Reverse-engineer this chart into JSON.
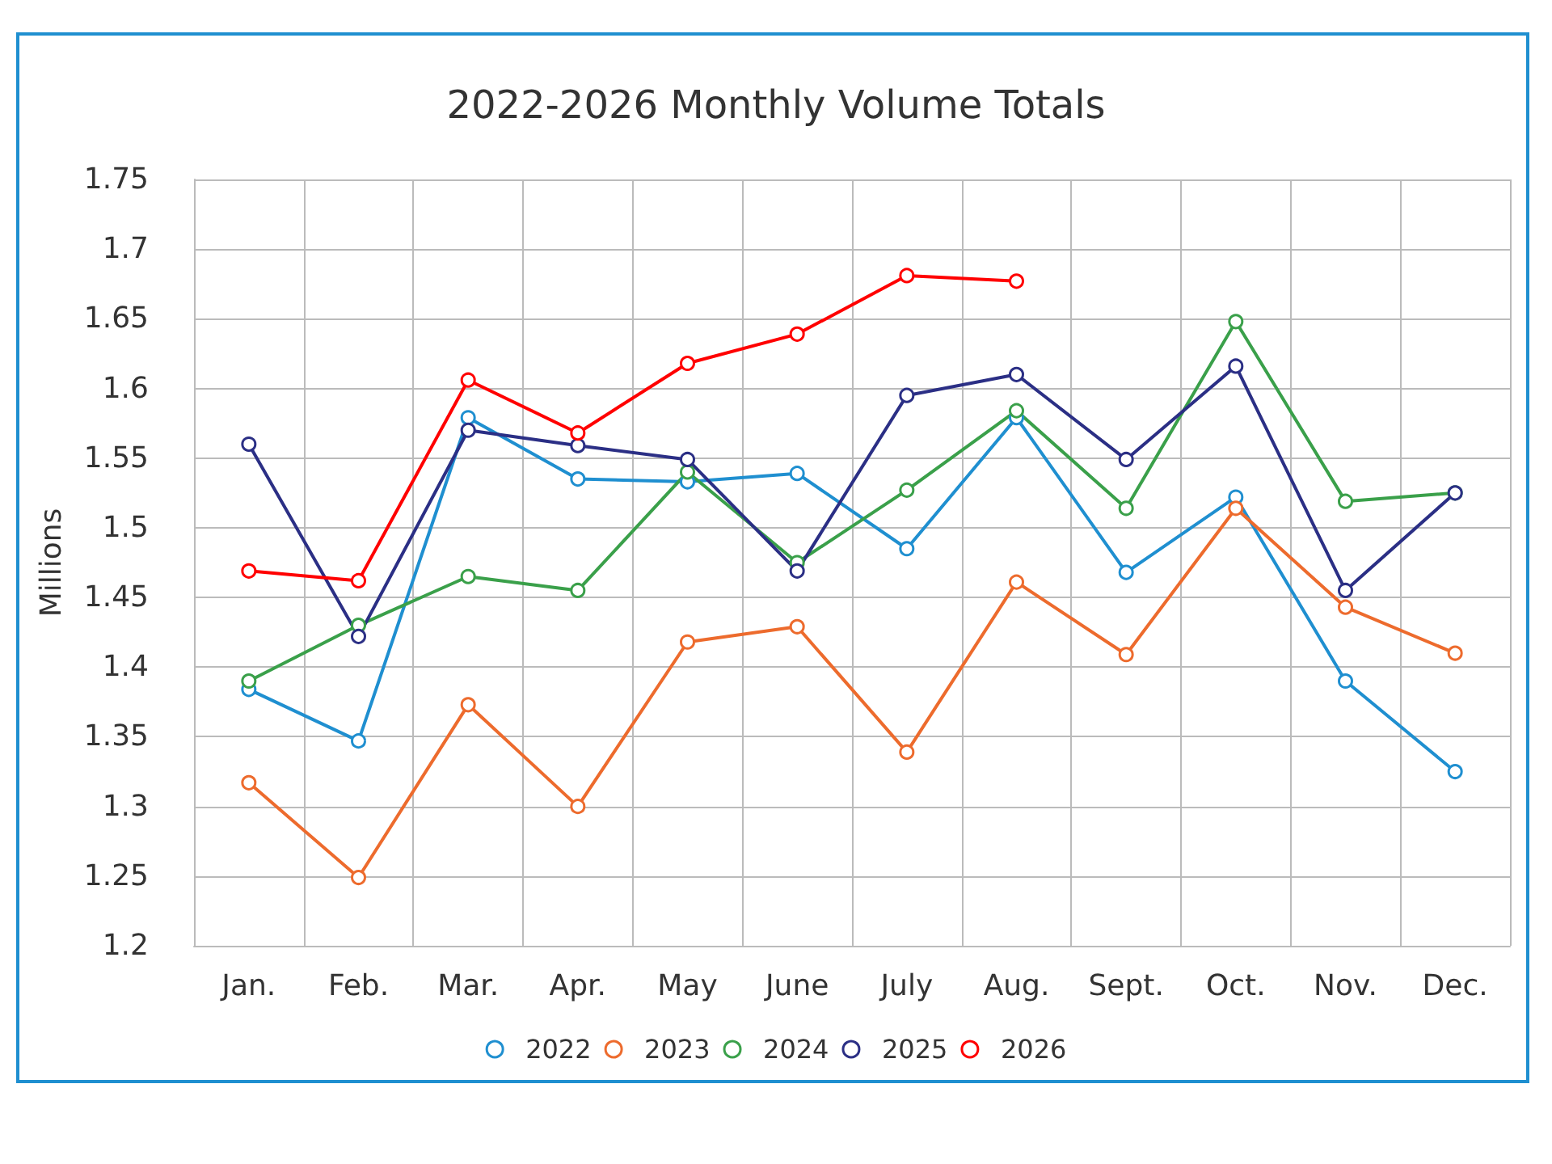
{
  "chart_data": {
    "type": "line",
    "title": "2022-2026 Monthly Volume Totals",
    "ylabel": "Millions",
    "categories": [
      "Jan.",
      "Feb.",
      "Mar.",
      "Apr.",
      "May",
      "June",
      "July",
      "Aug.",
      "Sept.",
      "Oct.",
      "Nov.",
      "Dec."
    ],
    "series": [
      {
        "name": "2022",
        "color": "#1f8fd0",
        "values": [
          1.384,
          1.347,
          1.579,
          1.535,
          1.533,
          1.539,
          1.485,
          1.579,
          1.468,
          1.522,
          1.39,
          1.325
        ]
      },
      {
        "name": "2023",
        "color": "#ed6b2d",
        "values": [
          1.317,
          1.249,
          1.373,
          1.3,
          1.418,
          1.429,
          1.339,
          1.461,
          1.409,
          1.514,
          1.443,
          1.41
        ]
      },
      {
        "name": "2024",
        "color": "#3aa04a",
        "values": [
          1.39,
          1.43,
          1.465,
          1.455,
          1.54,
          1.475,
          1.527,
          1.584,
          1.514,
          1.648,
          1.519,
          1.525
        ]
      },
      {
        "name": "2025",
        "color": "#2b2f85",
        "values": [
          1.56,
          1.422,
          1.57,
          1.559,
          1.549,
          1.469,
          1.595,
          1.61,
          1.549,
          1.616,
          1.455,
          1.525
        ]
      },
      {
        "name": "2026",
        "color": "#ff0000",
        "values": [
          1.469,
          1.462,
          1.606,
          1.568,
          1.618,
          1.639,
          1.681,
          1.677,
          null,
          null,
          null,
          null
        ]
      }
    ],
    "ylim": [
      1.2,
      1.75
    ],
    "yticks": [
      1.2,
      1.25,
      1.3,
      1.35,
      1.4,
      1.45,
      1.5,
      1.55,
      1.6,
      1.65,
      1.7,
      1.75
    ],
    "grid": true,
    "legend": "bottom",
    "marker": "circle",
    "line_style": "solid"
  }
}
